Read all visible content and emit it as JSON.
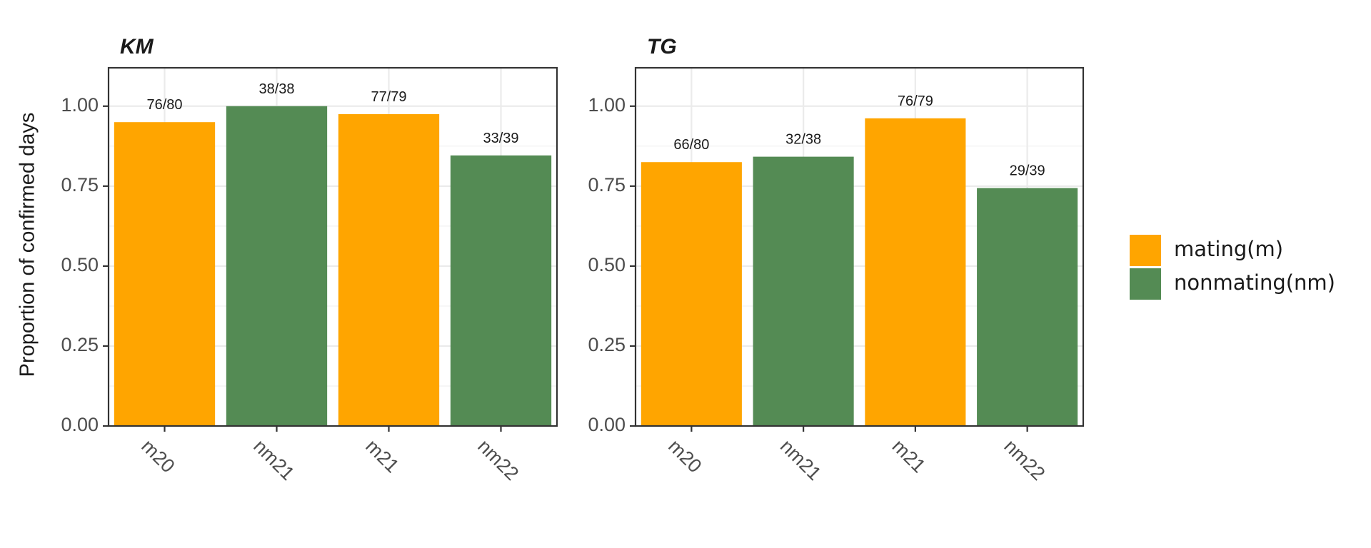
{
  "chart_data": [
    {
      "type": "bar",
      "title": "KM",
      "xlabel": "",
      "ylabel": "Proportion of confirmed days",
      "ylim": [
        0,
        1.12
      ],
      "yticks": [
        "0.00",
        "0.25",
        "0.50",
        "0.75",
        "1.00"
      ],
      "categories": [
        "m20",
        "nm21",
        "m21",
        "nm22"
      ],
      "values": [
        0.95,
        1.0,
        0.975,
        0.846
      ],
      "bar_labels": [
        "76/80",
        "38/38",
        "77/79",
        "33/39"
      ],
      "bar_groups": [
        "mating(m)",
        "nonmating(nm)",
        "mating(m)",
        "nonmating(nm)"
      ],
      "grid": true
    },
    {
      "type": "bar",
      "title": "TG",
      "xlabel": "",
      "ylabel": "",
      "ylim": [
        0,
        1.12
      ],
      "yticks": [
        "0.00",
        "0.25",
        "0.50",
        "0.75",
        "1.00"
      ],
      "categories": [
        "m20",
        "nm21",
        "m21",
        "nm22"
      ],
      "values": [
        0.825,
        0.842,
        0.962,
        0.744
      ],
      "bar_labels": [
        "66/80",
        "32/38",
        "76/79",
        "29/39"
      ],
      "bar_groups": [
        "mating(m)",
        "nonmating(nm)",
        "mating(m)",
        "nonmating(nm)"
      ],
      "grid": true
    }
  ],
  "legend": {
    "placement": "right",
    "items": [
      {
        "label": "mating(m)",
        "color": "#FFA500"
      },
      {
        "label": "nonmating(nm)",
        "color": "#548B54"
      }
    ]
  }
}
